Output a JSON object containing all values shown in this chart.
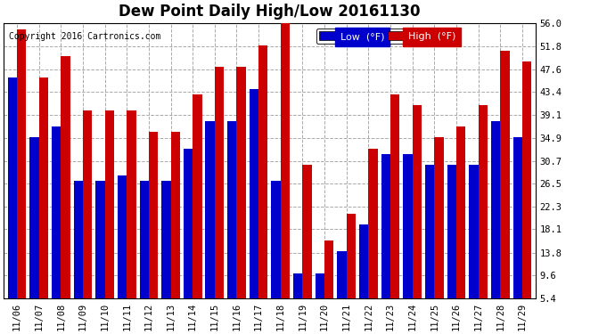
{
  "title": "Dew Point Daily High/Low 20161130",
  "copyright": "Copyright 2016 Cartronics.com",
  "dates": [
    "11/06",
    "11/07",
    "11/08",
    "11/09",
    "11/10",
    "11/11",
    "11/12",
    "11/13",
    "11/14",
    "11/15",
    "11/16",
    "11/17",
    "11/18",
    "11/19",
    "11/20",
    "11/21",
    "11/22",
    "11/23",
    "11/24",
    "11/25",
    "11/26",
    "11/27",
    "11/28",
    "11/29"
  ],
  "low": [
    46,
    35,
    37,
    27,
    27,
    28,
    27,
    27,
    33,
    38,
    38,
    44,
    27,
    10,
    10,
    14,
    19,
    32,
    32,
    30,
    30,
    30,
    38,
    35
  ],
  "high": [
    55,
    46,
    50,
    40,
    40,
    40,
    36,
    36,
    43,
    48,
    48,
    52,
    57,
    30,
    16,
    21,
    33,
    43,
    41,
    35,
    37,
    41,
    51,
    49
  ],
  "low_color": "#0000cc",
  "high_color": "#cc0000",
  "bg_color": "#ffffff",
  "plot_bg_color": "#ffffff",
  "grid_color": "#aaaaaa",
  "yticks": [
    5.4,
    9.6,
    13.8,
    18.1,
    22.3,
    26.5,
    30.7,
    34.9,
    39.1,
    43.4,
    47.6,
    51.8,
    56.0
  ],
  "ymin": 5.4,
  "ymax": 56.0,
  "bar_bottom": 5.4,
  "title_fontsize": 12,
  "legend_fontsize": 8,
  "tick_fontsize": 7.5
}
